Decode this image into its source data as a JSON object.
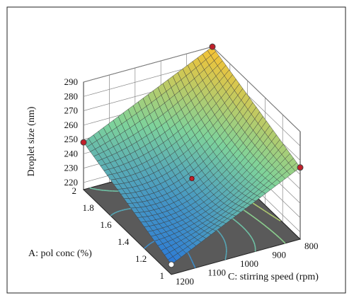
{
  "chart_data": {
    "type": "surface3d",
    "z_axis": {
      "label": "Droplet size (nm)",
      "ticks": [
        220,
        230,
        240,
        250,
        260,
        270,
        280,
        290
      ],
      "range": [
        215,
        290
      ]
    },
    "x_axis": {
      "label": "A: pol conc (%)",
      "ticks": [
        "1",
        "1.2",
        "1.4",
        "1.6",
        "1.8",
        "2"
      ],
      "range": [
        1,
        2
      ]
    },
    "y_axis": {
      "label": "C: stirring speed (rpm)",
      "ticks": [
        "1200",
        "1100",
        "1000",
        "900",
        "800"
      ],
      "range": [
        800,
        1200
      ]
    },
    "surface_corners": [
      {
        "A": 2,
        "C": 800,
        "z": 290
      },
      {
        "A": 1,
        "C": 800,
        "z": 265
      },
      {
        "A": 2,
        "C": 1200,
        "z": 248
      },
      {
        "A": 1,
        "C": 1200,
        "z": 222
      }
    ],
    "center_point": {
      "A": 1.5,
      "C": 1000,
      "z": 240
    },
    "contour_levels": [
      230,
      240,
      250,
      260,
      270
    ],
    "colors": {
      "floor": "#5a5a5a",
      "low": "#2a78d8",
      "mid": "#7ed39b",
      "high": "#f7c233",
      "marker": "#c0202a"
    },
    "grid": true
  }
}
